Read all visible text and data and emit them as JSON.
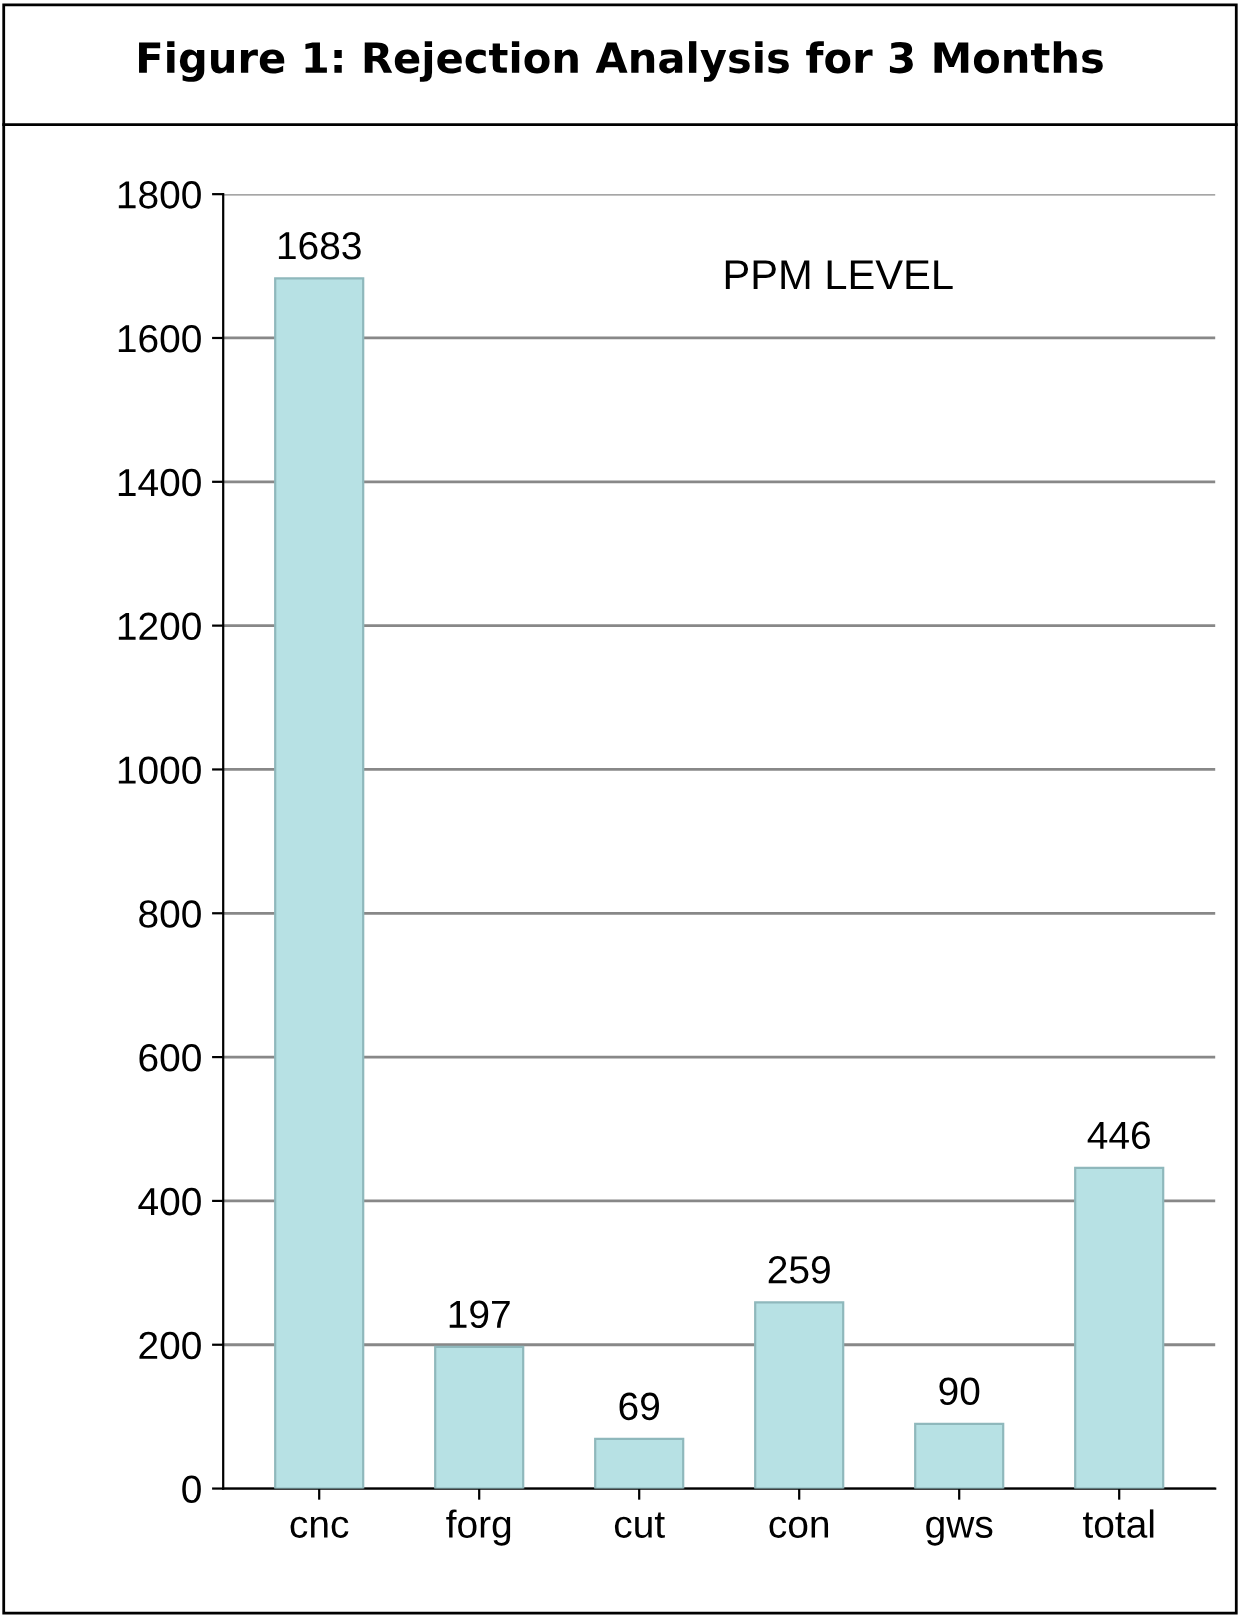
{
  "chart_data": {
    "type": "bar",
    "title": "Figure 1: Rejection Analysis for 3 Months",
    "categories": [
      "cnc",
      "forg",
      "cut",
      "con",
      "gws",
      "total"
    ],
    "values": [
      1683,
      197,
      69,
      259,
      90,
      446
    ],
    "color": "#b7e1e4",
    "ylim": [
      0,
      1800
    ],
    "yticks": [
      0,
      200,
      400,
      600,
      800,
      1000,
      1200,
      1400,
      1600,
      1800
    ],
    "grid": "y",
    "data_labels": true,
    "legend": false,
    "annotations": [
      "PPM LEVEL"
    ]
  }
}
